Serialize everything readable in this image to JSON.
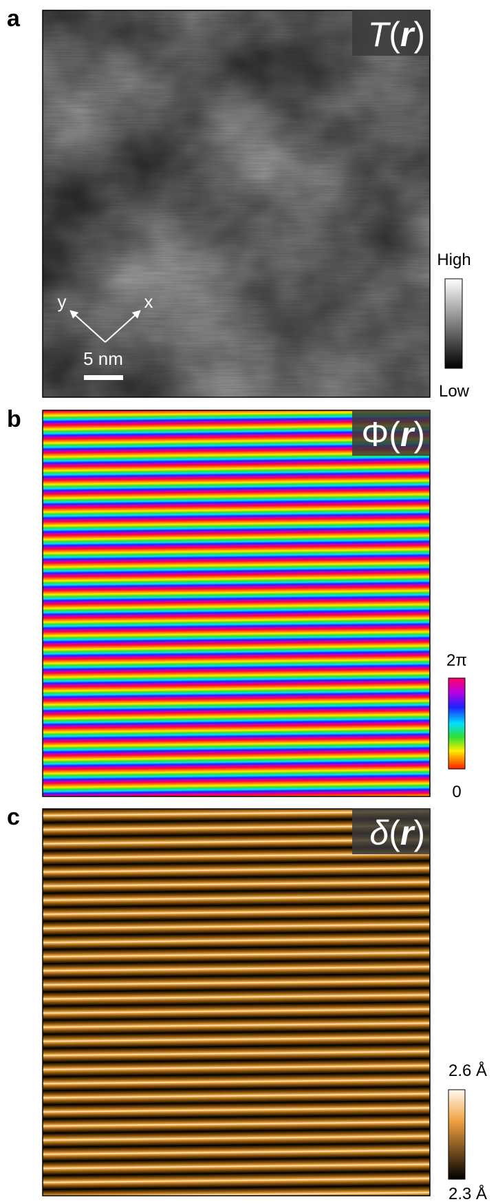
{
  "panels": [
    {
      "label": "a",
      "title_parts": [
        "T",
        "(",
        "r",
        ")"
      ],
      "colorbar": {
        "top": "High",
        "bottom": "Low"
      },
      "scale_bar": "5 nm",
      "axes": {
        "x": "x",
        "y": "y"
      }
    },
    {
      "label": "b",
      "title_parts": [
        "Φ",
        "(",
        "r",
        ")"
      ],
      "colorbar": {
        "top": "2π",
        "bottom": "0"
      }
    },
    {
      "label": "c",
      "title_parts": [
        "δ",
        "(",
        "r",
        ")"
      ],
      "colorbar": {
        "top": "2.6 Å",
        "bottom": "2.3 Å"
      }
    }
  ]
}
